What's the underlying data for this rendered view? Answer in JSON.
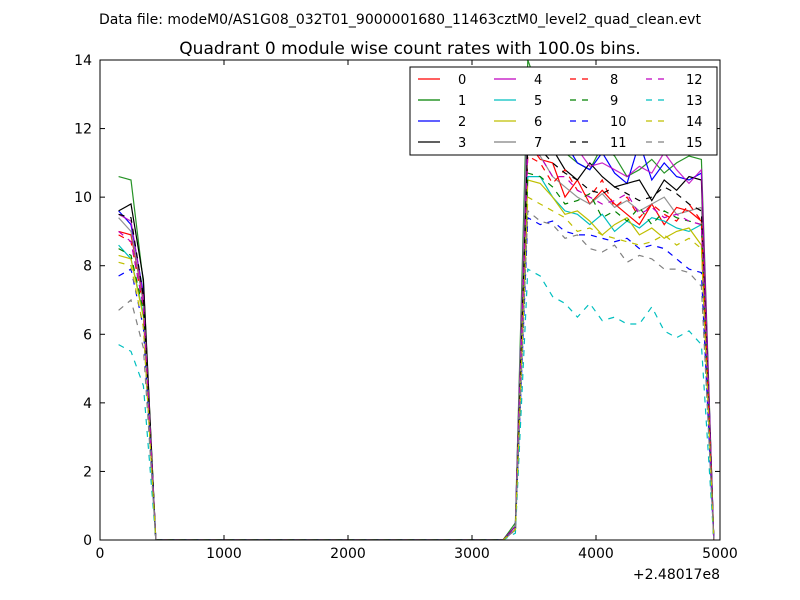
{
  "figure": {
    "suptitle": "Data file: modeM0/AS1G08_032T01_9000001680_11463cztM0_level2_quad_clean.evt",
    "title": "Quadrant 0 module wise count rates with 100.0s bins.",
    "x_offset_label": "+2.48017e8"
  },
  "chart_data": {
    "type": "line",
    "title": "Quadrant 0 module wise count rates with 100.0s bins.",
    "xlabel": "",
    "ylabel": "",
    "xlim": [
      0,
      5000
    ],
    "ylim": [
      0,
      14
    ],
    "xticks": [
      0,
      1000,
      2000,
      3000,
      4000,
      5000
    ],
    "yticks": [
      0,
      2,
      4,
      6,
      8,
      10,
      12,
      14
    ],
    "grid": false,
    "legend_position": "top-right",
    "legend_columns": 4,
    "x": [
      150,
      250,
      350,
      450,
      550,
      650,
      750,
      850,
      950,
      1050,
      1150,
      1250,
      1350,
      1450,
      1550,
      1650,
      1750,
      1850,
      1950,
      2050,
      2150,
      2250,
      2350,
      2450,
      2550,
      2650,
      2750,
      2850,
      2950,
      3050,
      3150,
      3250,
      3350,
      3450,
      3550,
      3650,
      3750,
      3850,
      3950,
      4050,
      4150,
      4250,
      4350,
      4450,
      4550,
      4650,
      4750,
      4850,
      4950
    ],
    "series": [
      {
        "name": "0",
        "color": "#ff0000",
        "dash": "solid",
        "values": [
          9.0,
          8.9,
          7.0,
          0,
          0,
          0,
          0,
          0,
          0,
          0,
          0,
          0,
          0,
          0,
          0,
          0,
          0,
          0,
          0,
          0,
          0,
          0,
          0,
          0,
          0,
          0,
          0,
          0,
          0,
          0,
          0,
          0,
          0.3,
          11.6,
          11.1,
          11.0,
          10.0,
          10.5,
          9.8,
          10.2,
          9.8,
          9.5,
          9.2,
          9.8,
          9.2,
          9.7,
          9.6,
          9.3,
          0
        ]
      },
      {
        "name": "1",
        "color": "#008000",
        "dash": "solid",
        "values": [
          10.6,
          10.5,
          7.5,
          0,
          0,
          0,
          0,
          0,
          0,
          0,
          0,
          0,
          0,
          0,
          0,
          0,
          0,
          0,
          0,
          0,
          0,
          0,
          0,
          0,
          0,
          0,
          0,
          0,
          0,
          0,
          0,
          0,
          0.5,
          14.0,
          13.0,
          12.2,
          11.3,
          11.0,
          10.8,
          11.5,
          11.2,
          10.6,
          10.8,
          11.1,
          10.7,
          11.0,
          11.2,
          11.1,
          0
        ]
      },
      {
        "name": "2",
        "color": "#0000ff",
        "dash": "solid",
        "values": [
          9.6,
          9.2,
          7.2,
          0,
          0,
          0,
          0,
          0,
          0,
          0,
          0,
          0,
          0,
          0,
          0,
          0,
          0,
          0,
          0,
          0,
          0,
          0,
          0,
          0,
          0,
          0,
          0,
          0,
          0,
          0,
          0,
          0,
          0.4,
          13.0,
          11.5,
          11.4,
          11.6,
          11.0,
          10.8,
          11.3,
          10.7,
          10.4,
          11.6,
          10.5,
          11.0,
          10.6,
          10.5,
          10.7,
          0
        ]
      },
      {
        "name": "3",
        "color": "#000000",
        "dash": "solid",
        "values": [
          9.6,
          9.8,
          7.6,
          0,
          0,
          0,
          0,
          0,
          0,
          0,
          0,
          0,
          0,
          0,
          0,
          0,
          0,
          0,
          0,
          0,
          0,
          0,
          0,
          0,
          0,
          0,
          0,
          0,
          0,
          0,
          0,
          0,
          0.4,
          11.8,
          11.8,
          11.4,
          10.8,
          10.5,
          11.0,
          10.6,
          10.3,
          10.4,
          10.5,
          9.9,
          10.5,
          10.2,
          10.6,
          10.5,
          0
        ]
      },
      {
        "name": "4",
        "color": "#bf00bf",
        "dash": "solid",
        "values": [
          9.5,
          9.3,
          7.1,
          0,
          0,
          0,
          0,
          0,
          0,
          0,
          0,
          0,
          0,
          0,
          0,
          0,
          0,
          0,
          0,
          0,
          0,
          0,
          0,
          0,
          0,
          0,
          0,
          0,
          0,
          0,
          0,
          0,
          0.4,
          13.0,
          12.5,
          12.0,
          11.3,
          11.4,
          10.9,
          11.0,
          10.8,
          10.6,
          10.9,
          10.7,
          11.3,
          10.8,
          10.4,
          10.8,
          0
        ]
      },
      {
        "name": "5",
        "color": "#00bfbf",
        "dash": "solid",
        "values": [
          8.6,
          8.2,
          6.6,
          0,
          0,
          0,
          0,
          0,
          0,
          0,
          0,
          0,
          0,
          0,
          0,
          0,
          0,
          0,
          0,
          0,
          0,
          0,
          0,
          0,
          0,
          0,
          0,
          0,
          0,
          0,
          0,
          0,
          0.3,
          10.6,
          10.6,
          10.0,
          9.6,
          9.5,
          9.2,
          9.5,
          9.0,
          9.3,
          9.1,
          9.4,
          9.3,
          9.1,
          9.0,
          9.2,
          0
        ]
      },
      {
        "name": "6",
        "color": "#bfbf00",
        "dash": "solid",
        "values": [
          8.3,
          8.2,
          6.5,
          0,
          0,
          0,
          0,
          0,
          0,
          0,
          0,
          0,
          0,
          0,
          0,
          0,
          0,
          0,
          0,
          0,
          0,
          0,
          0,
          0,
          0,
          0,
          0,
          0,
          0,
          0,
          0,
          0,
          0.3,
          10.5,
          10.4,
          10.0,
          9.5,
          9.6,
          9.3,
          8.9,
          9.2,
          9.4,
          8.9,
          9.1,
          8.8,
          9.0,
          9.1,
          8.6,
          0
        ]
      },
      {
        "name": "7",
        "color": "#808080",
        "dash": "solid",
        "values": [
          9.4,
          9.0,
          6.9,
          0,
          0,
          0,
          0,
          0,
          0,
          0,
          0,
          0,
          0,
          0,
          0,
          0,
          0,
          0,
          0,
          0,
          0,
          0,
          0,
          0,
          0,
          0,
          0,
          0,
          0,
          0,
          0,
          0,
          0.3,
          13.1,
          11.2,
          10.6,
          10.3,
          10.0,
          9.8,
          10.1,
          9.7,
          9.9,
          9.6,
          9.8,
          10.0,
          9.5,
          9.6,
          9.7,
          0
        ]
      },
      {
        "name": "8",
        "color": "#ff0000",
        "dash": "dashed",
        "values": [
          8.9,
          8.7,
          6.8,
          0,
          0,
          0,
          0,
          0,
          0,
          0,
          0,
          0,
          0,
          0,
          0,
          0,
          0,
          0,
          0,
          0,
          0,
          0,
          0,
          0,
          0,
          0,
          0,
          0,
          0,
          0,
          0,
          0,
          0.3,
          11.2,
          11.0,
          10.4,
          10.8,
          10.2,
          10.0,
          10.5,
          9.7,
          10.0,
          9.4,
          9.8,
          9.5,
          9.3,
          9.8,
          9.3,
          0
        ]
      },
      {
        "name": "9",
        "color": "#008000",
        "dash": "dashed",
        "values": [
          8.5,
          8.3,
          6.7,
          0,
          0,
          0,
          0,
          0,
          0,
          0,
          0,
          0,
          0,
          0,
          0,
          0,
          0,
          0,
          0,
          0,
          0,
          0,
          0,
          0,
          0,
          0,
          0,
          0,
          0,
          0,
          0,
          0,
          0.3,
          10.7,
          10.6,
          10.3,
          9.8,
          9.9,
          10.1,
          9.4,
          9.6,
          9.3,
          9.7,
          9.2,
          9.6,
          9.4,
          9.3,
          9.2,
          0
        ]
      },
      {
        "name": "10",
        "color": "#0000ff",
        "dash": "dashed",
        "values": [
          7.7,
          7.9,
          6.2,
          0,
          0,
          0,
          0,
          0,
          0,
          0,
          0,
          0,
          0,
          0,
          0,
          0,
          0,
          0,
          0,
          0,
          0,
          0,
          0,
          0,
          0,
          0,
          0,
          0,
          0,
          0,
          0,
          0,
          0.3,
          9.4,
          9.2,
          9.3,
          9.0,
          8.9,
          8.9,
          8.8,
          8.7,
          8.8,
          8.5,
          8.6,
          8.5,
          8.2,
          7.9,
          7.8,
          0
        ]
      },
      {
        "name": "11",
        "color": "#000000",
        "dash": "dashed",
        "values": [
          9.5,
          9.4,
          7.1,
          0,
          0,
          0,
          0,
          0,
          0,
          0,
          0,
          0,
          0,
          0,
          0,
          0,
          0,
          0,
          0,
          0,
          0,
          0,
          0,
          0,
          0,
          0,
          0,
          0,
          0,
          0,
          0,
          0,
          0.3,
          11.5,
          11.4,
          11.0,
          10.7,
          10.5,
          10.2,
          10.1,
          10.3,
          10.1,
          9.9,
          10.0,
          10.3,
          10.1,
          9.8,
          9.6,
          0
        ]
      },
      {
        "name": "12",
        "color": "#bf00bf",
        "dash": "dashed",
        "values": [
          9.0,
          8.7,
          6.8,
          0,
          0,
          0,
          0,
          0,
          0,
          0,
          0,
          0,
          0,
          0,
          0,
          0,
          0,
          0,
          0,
          0,
          0,
          0,
          0,
          0,
          0,
          0,
          0,
          0,
          0,
          0,
          0,
          0,
          0.3,
          11.4,
          11.2,
          10.6,
          10.6,
          10.2,
          10.0,
          9.8,
          9.9,
          10.1,
          9.5,
          9.7,
          9.4,
          9.5,
          9.3,
          9.2,
          0
        ]
      },
      {
        "name": "13",
        "color": "#00bfbf",
        "dash": "dashed",
        "values": [
          5.7,
          5.5,
          4.5,
          0,
          0,
          0,
          0,
          0,
          0,
          0,
          0,
          0,
          0,
          0,
          0,
          0,
          0,
          0,
          0,
          0,
          0,
          0,
          0,
          0,
          0,
          0,
          0,
          0,
          0,
          0,
          0,
          0,
          0.2,
          7.9,
          7.7,
          7.1,
          6.9,
          6.5,
          6.9,
          6.4,
          6.5,
          6.3,
          6.3,
          6.8,
          6.1,
          5.9,
          6.1,
          5.7,
          0
        ]
      },
      {
        "name": "14",
        "color": "#bfbf00",
        "dash": "dashed",
        "values": [
          8.1,
          8.0,
          6.2,
          0,
          0,
          0,
          0,
          0,
          0,
          0,
          0,
          0,
          0,
          0,
          0,
          0,
          0,
          0,
          0,
          0,
          0,
          0,
          0,
          0,
          0,
          0,
          0,
          0,
          0,
          0,
          0,
          0,
          0.3,
          10.0,
          9.8,
          9.6,
          9.4,
          9.0,
          9.1,
          8.9,
          8.8,
          8.7,
          8.6,
          8.7,
          8.9,
          8.6,
          8.8,
          8.5,
          0
        ]
      },
      {
        "name": "15",
        "color": "#808080",
        "dash": "dashed",
        "values": [
          6.7,
          7.0,
          5.6,
          0,
          0,
          0,
          0,
          0,
          0,
          0,
          0,
          0,
          0,
          0,
          0,
          0,
          0,
          0,
          0,
          0,
          0,
          0,
          0,
          0,
          0,
          0,
          0,
          0,
          0,
          0,
          0,
          0,
          0.3,
          9.6,
          9.3,
          9.2,
          8.8,
          8.9,
          8.5,
          8.4,
          8.6,
          8.1,
          8.3,
          8.2,
          7.9,
          7.9,
          7.8,
          7.4,
          0
        ]
      }
    ]
  }
}
